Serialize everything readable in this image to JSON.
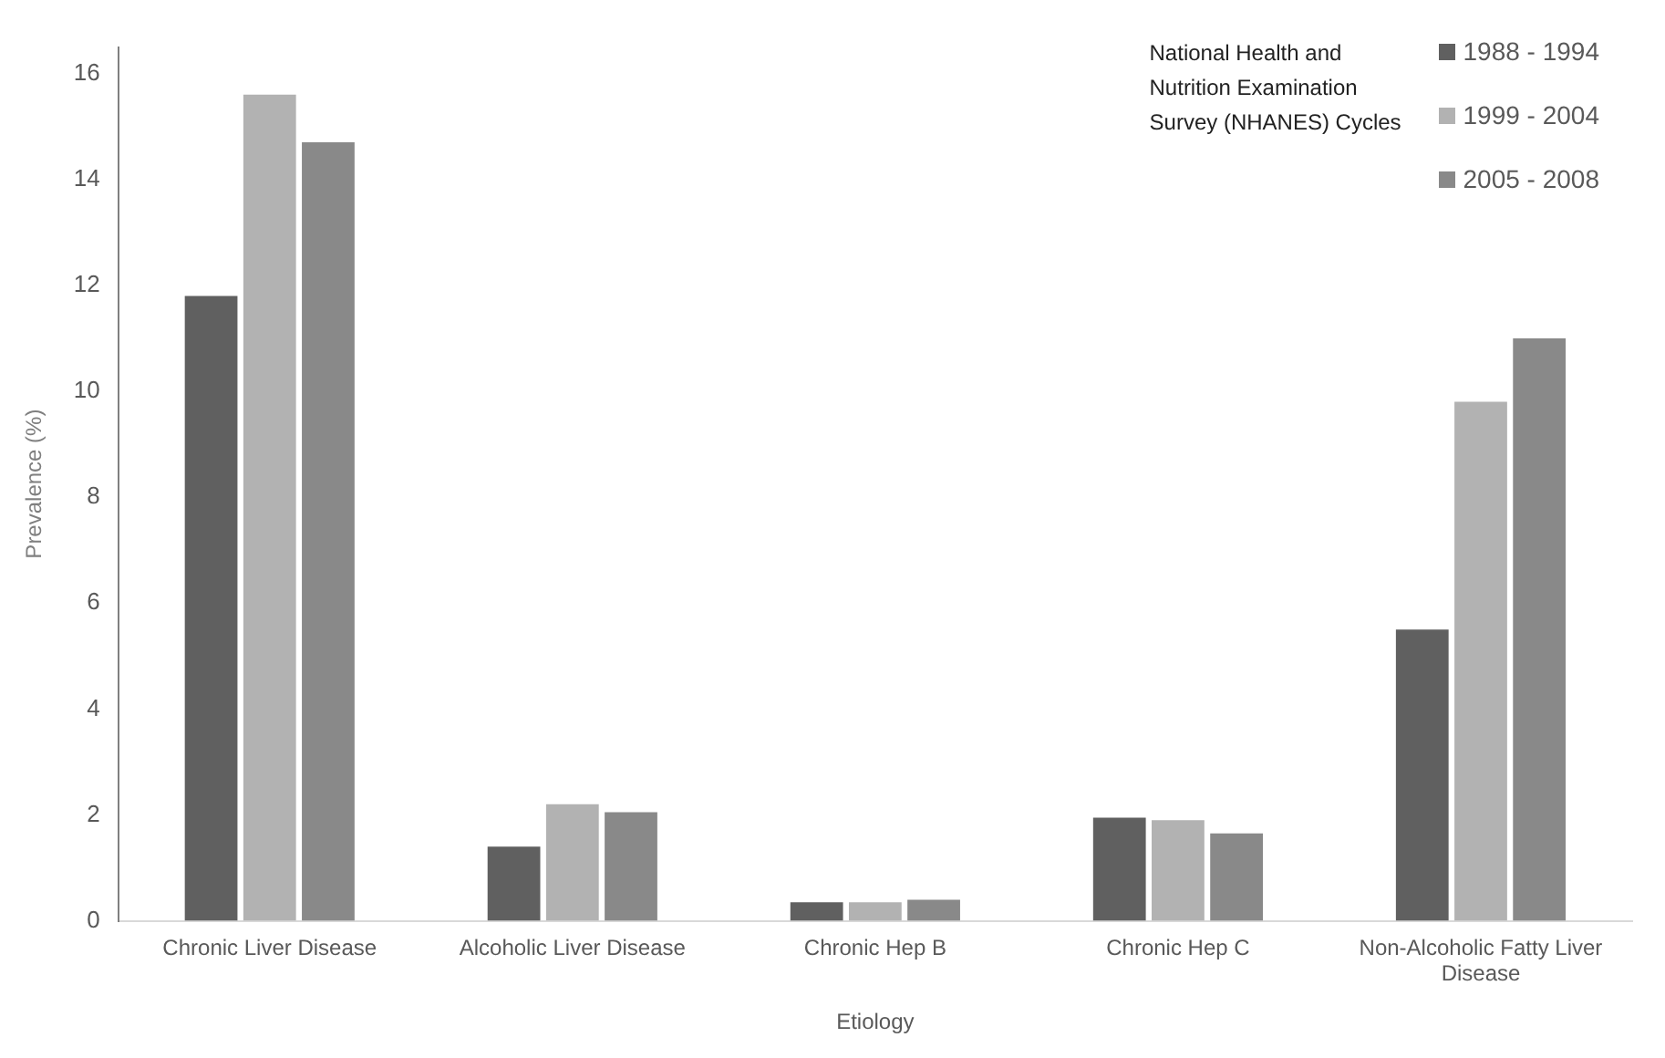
{
  "chart_data": {
    "type": "bar",
    "xlabel": "Etiology",
    "ylabel": "Prevalence (%)",
    "legend_title": "National Health and Nutrition Examination Survey (NHANES) Cycles",
    "categories": [
      "Chronic Liver Disease",
      "Alcoholic Liver Disease",
      "Chronic Hep B",
      "Chronic Hep C",
      "Non-Alcoholic Fatty Liver Disease"
    ],
    "series": [
      {
        "name": "1988 - 1994",
        "color": "#606060",
        "values": [
          11.8,
          1.4,
          0.35,
          1.95,
          5.5
        ]
      },
      {
        "name": "1999 - 2004",
        "color": "#b2b2b2",
        "values": [
          15.6,
          2.2,
          0.35,
          1.9,
          9.8
        ]
      },
      {
        "name": "2005 - 2008",
        "color": "#898989",
        "values": [
          14.7,
          2.05,
          0.4,
          1.65,
          11.0
        ]
      }
    ],
    "ylim": [
      0,
      16.5
    ],
    "yticks": [
      0,
      2,
      4,
      6,
      8,
      10,
      12,
      14,
      16
    ],
    "grid": false,
    "legend": "top right"
  }
}
